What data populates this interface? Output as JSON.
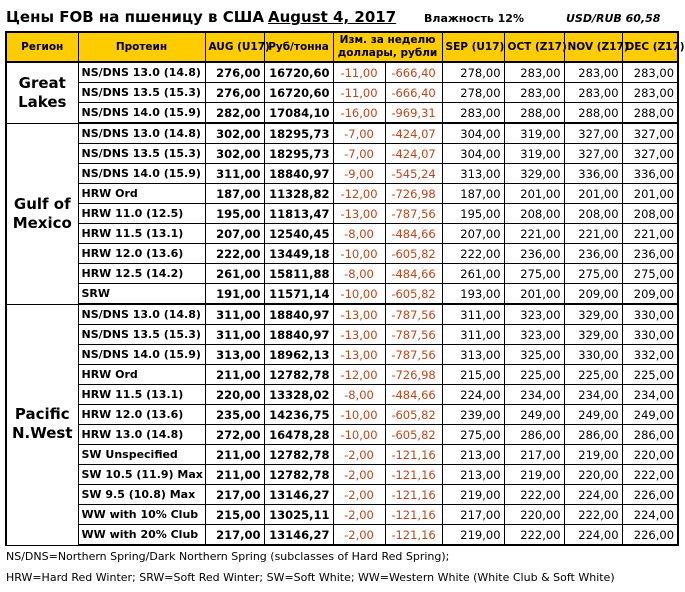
{
  "title": "Цены FOB на пшеницу в США",
  "date": "August 4, 2017",
  "humidity": "Влажность 12%",
  "fx": "USD/RUB  60,58",
  "colors": {
    "header_bg": "#ffcc00",
    "change_text": "#b8471d"
  },
  "headers": [
    "Регион",
    "Протеин",
    "AUG (U17)",
    "Руб/тонна",
    "Изм. за неделю доллары,  рубли",
    "SEP (U17)",
    "OCT (Z17)",
    "NOV (Z17)",
    "DEC (Z17)"
  ],
  "groups": [
    {
      "region": "Great Lakes",
      "rows": [
        [
          "NS/DNS 13.0 (14.8)",
          "276,00",
          "16720,60",
          "-11,00",
          "-666,40",
          "278,00",
          "283,00",
          "283,00",
          "283,00"
        ],
        [
          "NS/DNS 13.5 (15.3)",
          "276,00",
          "16720,60",
          "-11,00",
          "-666,40",
          "278,00",
          "283,00",
          "283,00",
          "283,00"
        ],
        [
          "NS/DNS 14.0 (15.9)",
          "282,00",
          "17084,10",
          "-16,00",
          "-969,31",
          "283,00",
          "288,00",
          "288,00",
          "288,00"
        ]
      ]
    },
    {
      "region": "Gulf of Mexico",
      "rows": [
        [
          "NS/DNS 13.0 (14.8)",
          "302,00",
          "18295,73",
          "-7,00",
          "-424,07",
          "304,00",
          "319,00",
          "327,00",
          "327,00"
        ],
        [
          "NS/DNS 13.5 (15.3)",
          "302,00",
          "18295,73",
          "-7,00",
          "-424,07",
          "304,00",
          "319,00",
          "327,00",
          "327,00"
        ],
        [
          "NS/DNS 14.0 (15.9)",
          "311,00",
          "18840,97",
          "-9,00",
          "-545,24",
          "313,00",
          "329,00",
          "336,00",
          "336,00"
        ],
        [
          "HRW Ord",
          "187,00",
          "11328,82",
          "-12,00",
          "-726,98",
          "187,00",
          "201,00",
          "201,00",
          "201,00"
        ],
        [
          "HRW 11.0 (12.5)",
          "195,00",
          "11813,47",
          "-13,00",
          "-787,56",
          "195,00",
          "208,00",
          "208,00",
          "208,00"
        ],
        [
          "HRW 11.5 (13.1)",
          "207,00",
          "12540,45",
          "-8,00",
          "-484,66",
          "207,00",
          "221,00",
          "221,00",
          "221,00"
        ],
        [
          "HRW 12.0 (13.6)",
          "222,00",
          "13449,18",
          "-10,00",
          "-605,82",
          "222,00",
          "236,00",
          "236,00",
          "236,00"
        ],
        [
          "HRW 12.5 (14.2)",
          "261,00",
          "15811,88",
          "-8,00",
          "-484,66",
          "261,00",
          "275,00",
          "275,00",
          "275,00"
        ],
        [
          "SRW",
          "191,00",
          "11571,14",
          "-10,00",
          "-605,82",
          "193,00",
          "201,00",
          "209,00",
          "209,00"
        ]
      ]
    },
    {
      "region": "Pacific N.West",
      "rows": [
        [
          "NS/DNS 13.0 (14.8)",
          "311,00",
          "18840,97",
          "-13,00",
          "-787,56",
          "311,00",
          "323,00",
          "329,00",
          "330,00"
        ],
        [
          "NS/DNS 13.5 (15.3)",
          "311,00",
          "18840,97",
          "-13,00",
          "-787,56",
          "311,00",
          "323,00",
          "329,00",
          "330,00"
        ],
        [
          "NS/DNS 14.0 (15.9)",
          "313,00",
          "18962,13",
          "-13,00",
          "-787,56",
          "313,00",
          "325,00",
          "330,00",
          "332,00"
        ],
        [
          "HRW Ord",
          "211,00",
          "12782,78",
          "-12,00",
          "-726,98",
          "215,00",
          "225,00",
          "225,00",
          "225,00"
        ],
        [
          "HRW 11.5 (13.1)",
          "220,00",
          "13328,02",
          "-8,00",
          "-484,66",
          "224,00",
          "234,00",
          "234,00",
          "234,00"
        ],
        [
          "HRW 12.0 (13.6)",
          "235,00",
          "14236,75",
          "-10,00",
          "-605,82",
          "239,00",
          "249,00",
          "249,00",
          "249,00"
        ],
        [
          "HRW 13.0 (14.8)",
          "272,00",
          "16478,28",
          "-10,00",
          "-605,82",
          "275,00",
          "286,00",
          "286,00",
          "286,00"
        ],
        [
          "SW Unspecified",
          "211,00",
          "12782,78",
          "-2,00",
          "-121,16",
          "213,00",
          "217,00",
          "219,00",
          "220,00"
        ],
        [
          "SW 10.5 (11.9) Max",
          "211,00",
          "12782,78",
          "-2,00",
          "-121,16",
          "213,00",
          "219,00",
          "220,00",
          "222,00"
        ],
        [
          "SW 9.5 (10.8) Max",
          "217,00",
          "13146,27",
          "-2,00",
          "-121,16",
          "219,00",
          "222,00",
          "224,00",
          "226,00"
        ],
        [
          "WW with 10% Club",
          "215,00",
          "13025,11",
          "-2,00",
          "-121,16",
          "217,00",
          "220,00",
          "222,00",
          "224,00"
        ],
        [
          "WW with 20% Club",
          "217,00",
          "13146,27",
          "-2,00",
          "-121,16",
          "219,00",
          "222,00",
          "224,00",
          "226,00"
        ]
      ]
    }
  ],
  "notes": [
    "NS/DNS=Northern Spring/Dark Northern Spring (subclasses of Hard Red Spring);",
    "HRW=Hard Red Winter; SRW=Soft Red Winter; SW=Soft White; WW=Western White (White Club & Soft White)"
  ]
}
